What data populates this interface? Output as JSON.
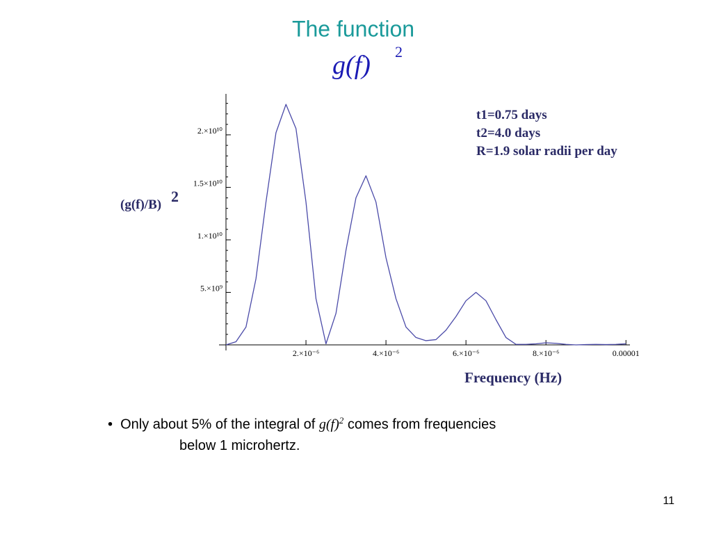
{
  "slide": {
    "title": "The function",
    "formula": "g(f)",
    "formula_power": "2",
    "page_number": "11",
    "bullet": {
      "before": "Only about 5% of the integral of",
      "italic": "g(f)",
      "power": "2",
      "after": "comes from frequencies",
      "line2": "below 1 microhertz."
    }
  },
  "chart_data": {
    "type": "line",
    "x_label": "Frequency (Hz)",
    "y_label": "(g(f)/B)",
    "y_label_power": "2",
    "annotations": [
      "t1=0.75 days",
      "t2=4.0 days",
      "R=1.9 solar radii per day"
    ],
    "color": "#4a4aa8",
    "x": [
      0,
      2.5e-07,
      5e-07,
      7.5e-07,
      1e-06,
      1.25e-06,
      1.5e-06,
      1.75e-06,
      2e-06,
      2.25e-06,
      2.5e-06,
      2.75e-06,
      3e-06,
      3.25e-06,
      3.5e-06,
      3.75e-06,
      4e-06,
      4.25e-06,
      4.5e-06,
      4.75e-06,
      5e-06,
      5.25e-06,
      5.5e-06,
      5.75e-06,
      6e-06,
      6.25e-06,
      6.5e-06,
      6.75e-06,
      7e-06,
      7.25e-06,
      7.5e-06,
      7.75e-06,
      8e-06,
      8.25e-06,
      8.5e-06,
      8.75e-06,
      9e-06,
      9.25e-06,
      9.5e-06,
      9.75e-06,
      1e-05
    ],
    "values": [
      0,
      300000000.0,
      1700000000.0,
      6300000000.0,
      13600000000.0,
      20200000000.0,
      22900000000.0,
      20600000000.0,
      13600000000.0,
      4400000000.0,
      100000000.0,
      3000000000.0,
      9000000000.0,
      14000000000.0,
      16100000000.0,
      13600000000.0,
      8300000000.0,
      4400000000.0,
      1700000000.0,
      700000000.0,
      400000000.0,
      500000000.0,
      1400000000.0,
      2700000000.0,
      4200000000.0,
      5000000000.0,
      4200000000.0,
      2400000000.0,
      700000000.0,
      50000000.0,
      50000000.0,
      100000000.0,
      200000000.0,
      150000000.0,
      50000000.0,
      0,
      30000000.0,
      50000000.0,
      30000000.0,
      50000000.0,
      100000000.0
    ],
    "xlim": [
      0,
      1.01e-05
    ],
    "ylim": [
      0,
      23900000000.0
    ],
    "xticks": [
      {
        "value": 2e-06,
        "label": "2.×10⁻⁶"
      },
      {
        "value": 4e-06,
        "label": "4.×10⁻⁶"
      },
      {
        "value": 6e-06,
        "label": "6.×10⁻⁶"
      },
      {
        "value": 8e-06,
        "label": "8.×10⁻⁶"
      },
      {
        "value": 1e-05,
        "label": "0.00001"
      }
    ],
    "yticks": [
      {
        "value": 5000000000.0,
        "label": "5.×10⁹"
      },
      {
        "value": 10000000000.0,
        "label": "1.×10¹⁰"
      },
      {
        "value": 15000000000.0,
        "label": "1.5×10¹⁰"
      },
      {
        "value": 20000000000.0,
        "label": "2.×10¹⁰"
      }
    ]
  }
}
